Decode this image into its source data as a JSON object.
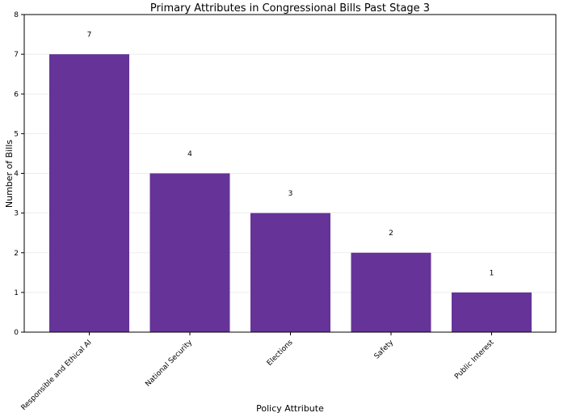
{
  "chart_data": {
    "type": "bar",
    "title": "Primary Attributes in Congressional Bills Past Stage 3",
    "xlabel": "Policy Attribute",
    "ylabel": "Number of Bills",
    "categories": [
      "Responsible and Ethical AI",
      "National Security",
      "Elections",
      "Safety",
      "Public Interest"
    ],
    "values": [
      7,
      4,
      3,
      2,
      1
    ],
    "data_labels": [
      "7",
      "4",
      "3",
      "2",
      "1"
    ],
    "ylim": [
      0,
      8
    ],
    "yticks": [
      "0",
      "1",
      "2",
      "3",
      "4",
      "5",
      "6",
      "7",
      "8"
    ],
    "grid": true,
    "bar_color": "#663399"
  }
}
